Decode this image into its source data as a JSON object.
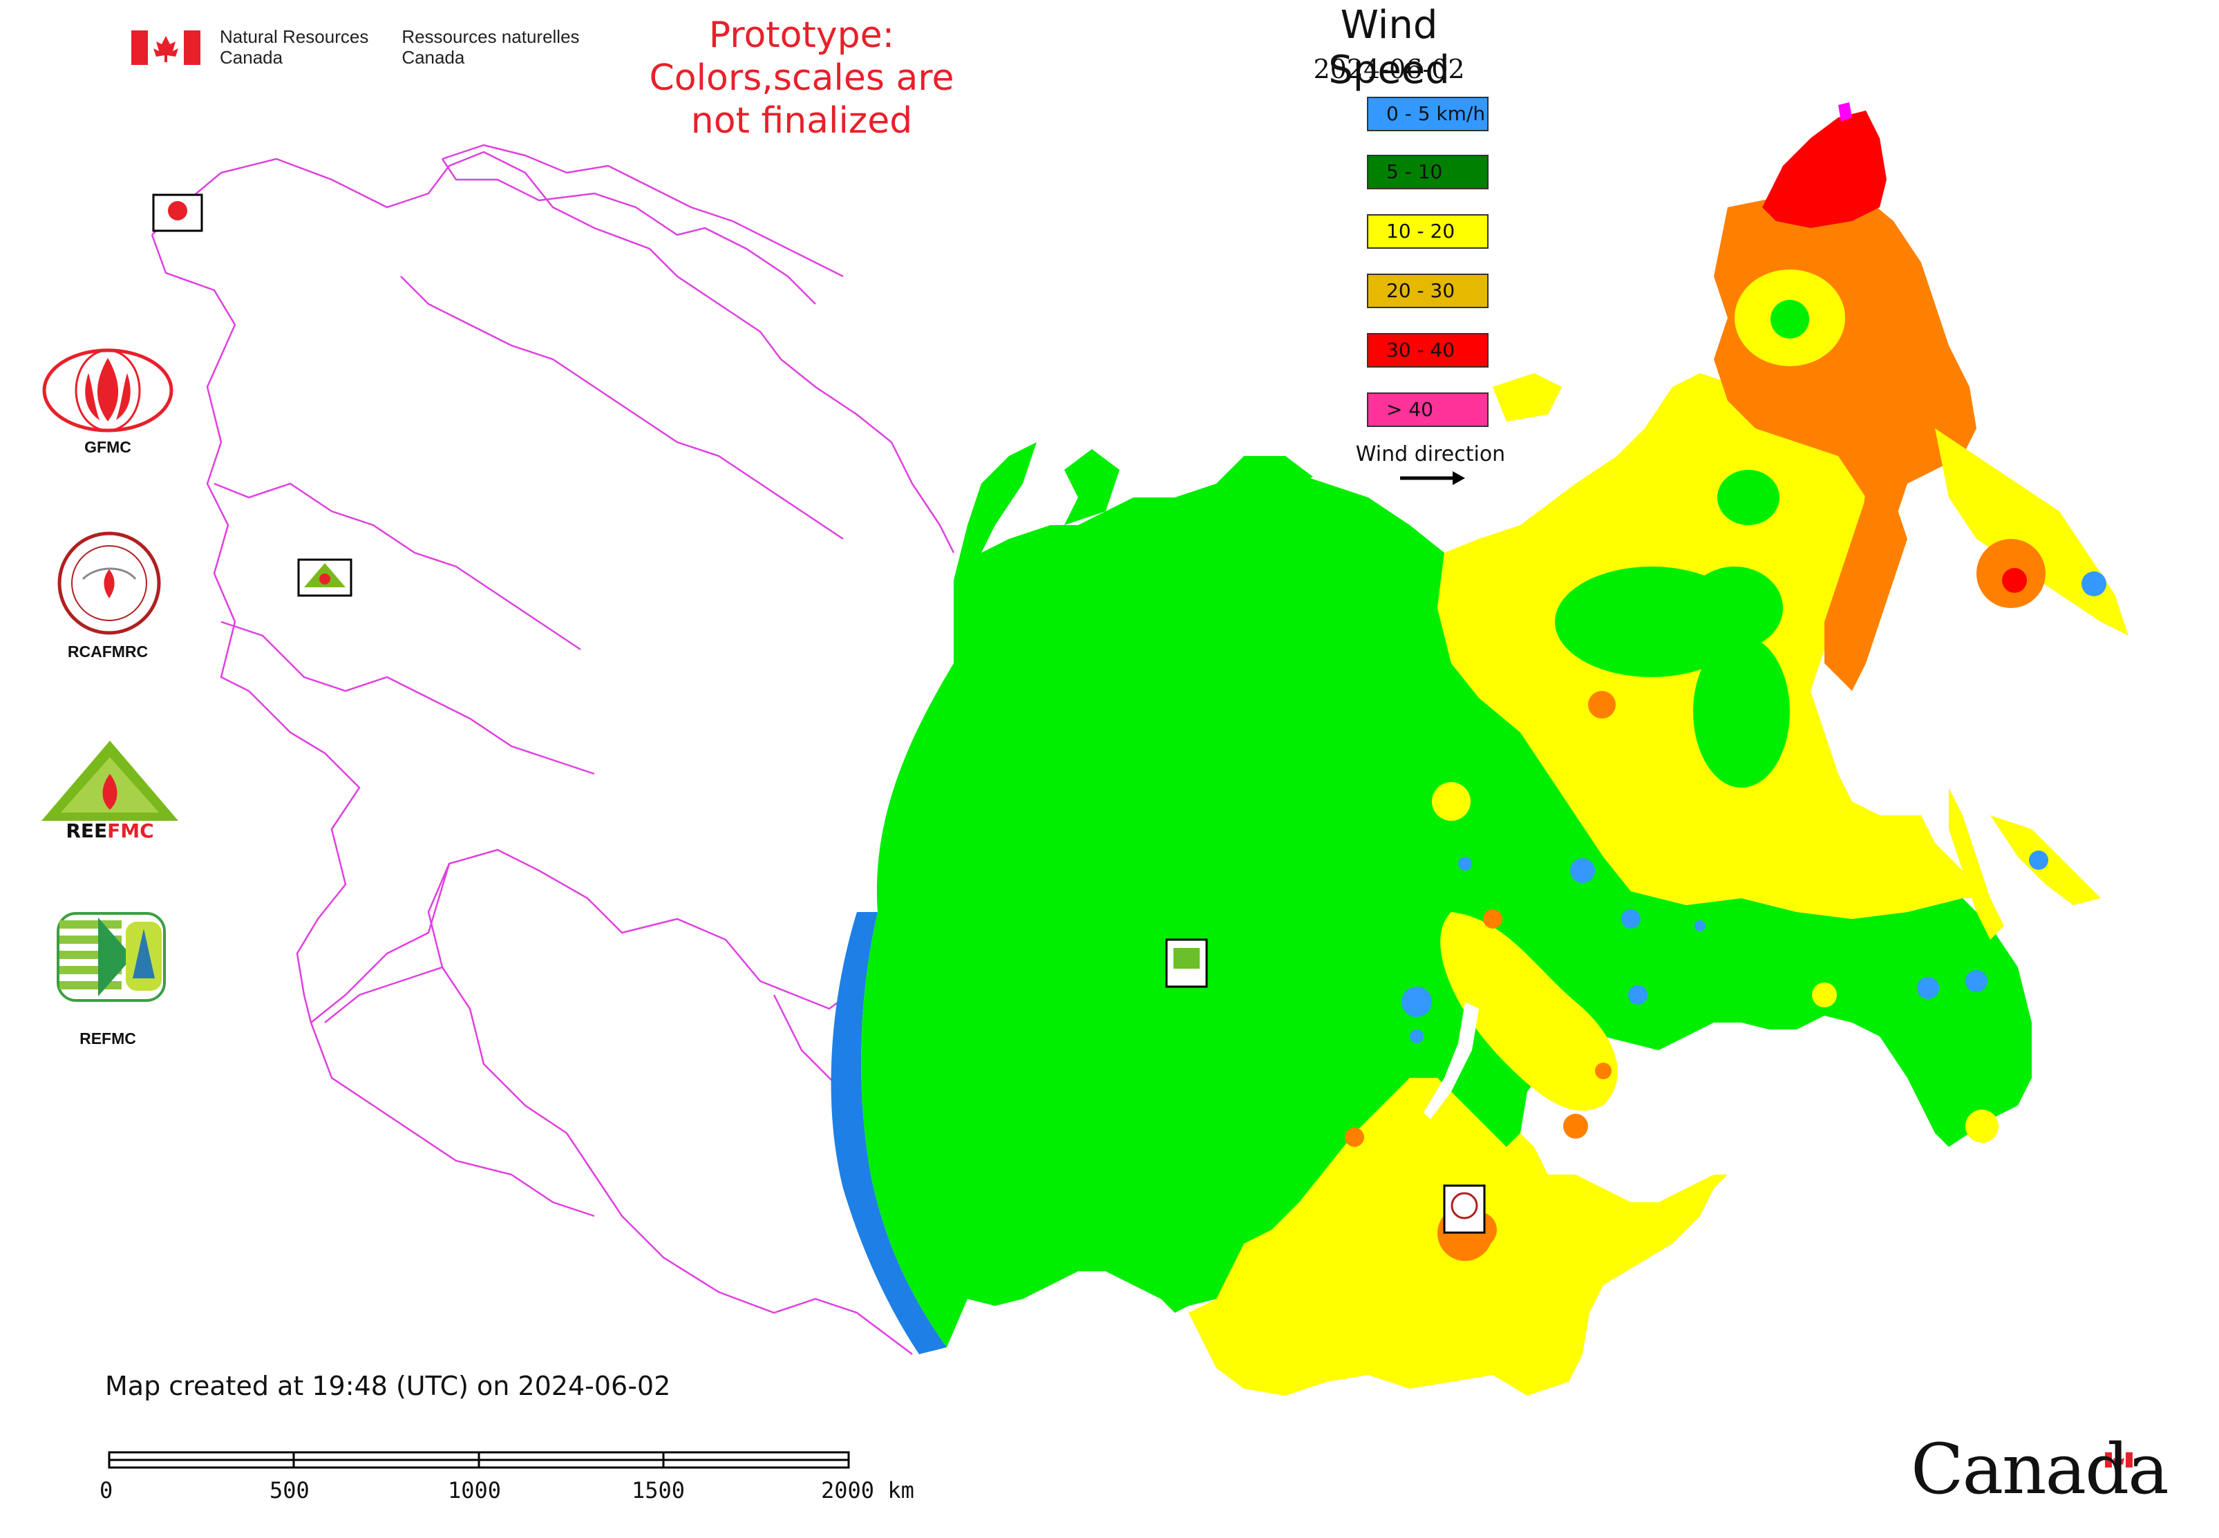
{
  "header": {
    "agency_en": [
      "Natural Resources",
      "Canada"
    ],
    "agency_fr": [
      "Ressources naturelles",
      "Canada"
    ],
    "prototype_notice": [
      "Prototype:",
      "Colors,scales are not finalized"
    ]
  },
  "map": {
    "title": "Wind Speed",
    "date": "2024-06-02",
    "legend": [
      {
        "label": "0 - 5 km/h",
        "color": "#3399ff"
      },
      {
        "label": "5 - 10",
        "color": "#008000"
      },
      {
        "label": "10 - 20",
        "color": "#ffff00"
      },
      {
        "label": "20 - 30",
        "color": "#e6b800"
      },
      {
        "label": "30 - 40",
        "color": "#ff0000"
      },
      {
        "label": "> 40",
        "color": "#ff3399"
      }
    ],
    "wind_direction_label": "Wind direction",
    "zone_colors": {
      "calm": "#1e7fe6",
      "light": "#00ee00",
      "moderate": "#ffff00",
      "strong": "#ff8000",
      "very_strong": "#ff0000",
      "extreme": "#ff00ff",
      "borders": "#e040e0"
    }
  },
  "organizations": [
    {
      "label": "GFMC",
      "icon": "gfmc-logo-icon"
    },
    {
      "label": "RCAFMRC",
      "icon": "rcafmrc-logo-icon"
    },
    {
      "label": "REEFMC",
      "icon": "reefmc-logo-icon"
    },
    {
      "label": "REFMC",
      "icon": "refmc-logo-icon"
    }
  ],
  "footer": {
    "created_note": "Map created at 19:48 (UTC) on 2024-06-02",
    "scale_labels": [
      "0",
      "500",
      "1000",
      "1500",
      "2000 km"
    ],
    "wordmark": "Canada"
  }
}
